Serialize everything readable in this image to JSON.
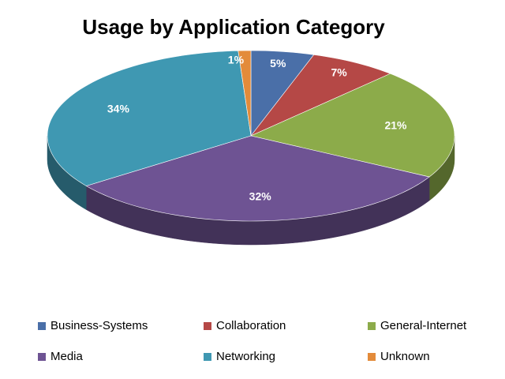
{
  "chart_data": {
    "type": "pie",
    "title": "Usage by Application Category",
    "categories": [
      "Business-Systems",
      "Collaboration",
      "General-Internet",
      "Media",
      "Networking",
      "Unknown"
    ],
    "values": [
      5,
      7,
      21,
      32,
      34,
      1
    ],
    "value_labels": [
      "5%",
      "7%",
      "21%",
      "32%",
      "34%",
      "1%"
    ],
    "colors": [
      "#4a6fa8",
      "#b54846",
      "#8cab4a",
      "#6e5393",
      "#3f98b2",
      "#e38b3a"
    ],
    "legend": "bottom"
  }
}
